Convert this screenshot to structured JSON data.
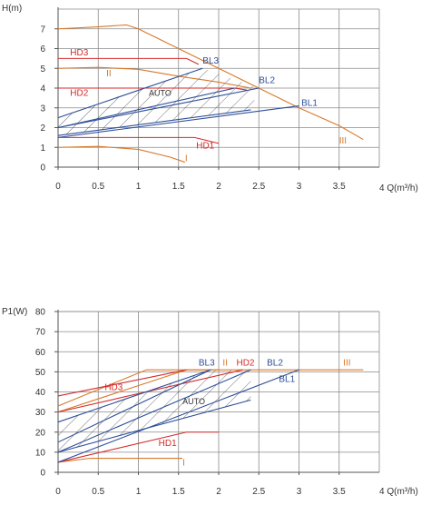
{
  "colors": {
    "orange": "#d9782a",
    "red": "#d42a2a",
    "blue": "#2e4f9a",
    "grid": "#8a8a8a",
    "axis": "#555555",
    "text": "#333333"
  },
  "chart_data": [
    {
      "type": "line",
      "ylabel": "H(m)",
      "xlabel": "4 Q(m³/h)",
      "xlim": [
        0,
        4
      ],
      "ylim": [
        0,
        8
      ],
      "x_ticks": [
        "0",
        "0.5",
        "1",
        "1.5",
        "2",
        "2.5",
        "3",
        "3.5"
      ],
      "y_ticks": [
        "0",
        "1",
        "2",
        "3",
        "4",
        "5",
        "6",
        "7"
      ],
      "grid": true,
      "series": [
        {
          "name": "III",
          "color": "#d9782a",
          "points": [
            [
              0,
              7
            ],
            [
              0.5,
              7.1
            ],
            [
              0.85,
              7.2
            ],
            [
              1.0,
              7.0
            ],
            [
              1.5,
              6.0
            ],
            [
              2.0,
              5.0
            ],
            [
              2.5,
              4.0
            ],
            [
              3.0,
              3.0
            ],
            [
              3.5,
              2.1
            ],
            [
              3.8,
              1.4
            ]
          ]
        },
        {
          "name": "II",
          "color": "#d9782a",
          "points": [
            [
              0,
              5
            ],
            [
              0.5,
              5.05
            ],
            [
              1.0,
              4.95
            ],
            [
              1.5,
              4.6
            ],
            [
              2.0,
              4.3
            ],
            [
              2.4,
              4.0
            ]
          ]
        },
        {
          "name": "I",
          "color": "#d9782a",
          "points": [
            [
              0,
              1
            ],
            [
              0.5,
              1.05
            ],
            [
              1.0,
              0.9
            ],
            [
              1.4,
              0.5
            ],
            [
              1.58,
              0.25
            ]
          ]
        },
        {
          "name": "HD3",
          "color": "#d42a2a",
          "points": [
            [
              0,
              5.5
            ],
            [
              1.6,
              5.5
            ],
            [
              1.75,
              5.2
            ]
          ]
        },
        {
          "name": "HD2",
          "color": "#d42a2a",
          "points": [
            [
              0,
              4
            ],
            [
              2.2,
              4
            ],
            [
              2.35,
              3.9
            ]
          ]
        },
        {
          "name": "HD1",
          "color": "#d42a2a",
          "points": [
            [
              0,
              1.5
            ],
            [
              1.7,
              1.5
            ],
            [
              2.0,
              1.2
            ]
          ]
        },
        {
          "name": "BL3",
          "color": "#2e4f9a",
          "points": [
            [
              0,
              2.5
            ],
            [
              1.8,
              5.0
            ]
          ]
        },
        {
          "name": "BL2",
          "color": "#2e4f9a",
          "points": [
            [
              0,
              2.0
            ],
            [
              2.5,
              4.0
            ]
          ]
        },
        {
          "name": "BL1",
          "color": "#2e4f9a",
          "points": [
            [
              0,
              1.5
            ],
            [
              3.0,
              3.1
            ]
          ]
        },
        {
          "name": "AUTO-upper",
          "color": "#2e4f9a",
          "points": [
            [
              0,
              2.0
            ],
            [
              2.2,
              4.0
            ]
          ]
        },
        {
          "name": "AUTO-lower",
          "color": "#2e4f9a",
          "points": [
            [
              0,
              1.6
            ],
            [
              2.4,
              2.9
            ]
          ]
        }
      ],
      "labels": [
        {
          "text": "HD3",
          "x": 0.15,
          "y": 5.65,
          "color": "#d42a2a"
        },
        {
          "text": "II",
          "x": 0.6,
          "y": 4.6,
          "color": "#d9782a"
        },
        {
          "text": "HD2",
          "x": 0.15,
          "y": 3.6,
          "color": "#d42a2a"
        },
        {
          "text": "AUTO",
          "x": 1.13,
          "y": 3.6,
          "color": "#333333"
        },
        {
          "text": "BL3",
          "x": 1.8,
          "y": 5.25,
          "color": "#2e4f9a"
        },
        {
          "text": "BL2",
          "x": 2.5,
          "y": 4.25,
          "color": "#2e4f9a"
        },
        {
          "text": "BL1",
          "x": 3.03,
          "y": 3.1,
          "color": "#2e4f9a"
        },
        {
          "text": "HD1",
          "x": 1.72,
          "y": 0.95,
          "color": "#d42a2a"
        },
        {
          "text": "I",
          "x": 1.58,
          "y": 0.3,
          "color": "#d9782a"
        },
        {
          "text": "III",
          "x": 3.5,
          "y": 1.2,
          "color": "#d9782a"
        }
      ],
      "hatch_region": [
        [
          0,
          1.6
        ],
        [
          2.4,
          2.9
        ],
        [
          2.5,
          4.0
        ],
        [
          1.8,
          5.0
        ],
        [
          0,
          2.5
        ]
      ]
    },
    {
      "type": "line",
      "ylabel": "P1(W)",
      "xlabel": "4 Q(m³/h)",
      "xlim": [
        0,
        4
      ],
      "ylim": [
        0,
        80
      ],
      "x_ticks": [
        "0",
        "0.5",
        "1",
        "1.5",
        "2",
        "2.5",
        "3",
        "3.5"
      ],
      "y_ticks": [
        "0",
        "10",
        "20",
        "30",
        "40",
        "50",
        "60",
        "70",
        "80"
      ],
      "grid": true,
      "series": [
        {
          "name": "III",
          "color": "#d9782a",
          "points": [
            [
              0,
              33
            ],
            [
              1.1,
              51
            ],
            [
              3.8,
              51
            ]
          ]
        },
        {
          "name": "II",
          "color": "#d9782a",
          "points": [
            [
              0,
              30
            ],
            [
              1.6,
              51
            ],
            [
              2.0,
              51
            ]
          ]
        },
        {
          "name": "I",
          "color": "#d9782a",
          "points": [
            [
              0,
              5
            ],
            [
              0.4,
              7
            ],
            [
              1.55,
              7
            ]
          ]
        },
        {
          "name": "HD3",
          "color": "#d42a2a",
          "points": [
            [
              0,
              38
            ],
            [
              1.6,
              51
            ]
          ]
        },
        {
          "name": "HD2",
          "color": "#d42a2a",
          "points": [
            [
              0,
              30
            ],
            [
              2.3,
              51
            ]
          ]
        },
        {
          "name": "HD1",
          "color": "#d42a2a",
          "points": [
            [
              0,
              5
            ],
            [
              1.6,
              20
            ],
            [
              2.0,
              20
            ]
          ]
        },
        {
          "name": "BL3",
          "color": "#2e4f9a",
          "points": [
            [
              0,
              15
            ],
            [
              1.9,
              51
            ]
          ]
        },
        {
          "name": "BL2",
          "color": "#2e4f9a",
          "points": [
            [
              0,
              10
            ],
            [
              2.4,
              51
            ]
          ]
        },
        {
          "name": "BL1",
          "color": "#2e4f9a",
          "points": [
            [
              0,
              5
            ],
            [
              3.0,
              51
            ]
          ]
        },
        {
          "name": "AUTO-upper",
          "color": "#2e4f9a",
          "points": [
            [
              0,
              25
            ],
            [
              1.9,
              51
            ]
          ]
        },
        {
          "name": "AUTO-lower",
          "color": "#2e4f9a",
          "points": [
            [
              0,
              10
            ],
            [
              2.4,
              36
            ]
          ]
        }
      ],
      "labels": [
        {
          "text": "BL3",
          "x": 1.75,
          "y": 53,
          "color": "#2e4f9a"
        },
        {
          "text": "II",
          "x": 2.05,
          "y": 53,
          "color": "#d9782a"
        },
        {
          "text": "HD2",
          "x": 2.22,
          "y": 53,
          "color": "#d42a2a"
        },
        {
          "text": "BL2",
          "x": 2.6,
          "y": 53,
          "color": "#2e4f9a"
        },
        {
          "text": "III",
          "x": 3.55,
          "y": 53,
          "color": "#d9782a"
        },
        {
          "text": "BL1",
          "x": 2.75,
          "y": 45,
          "color": "#2e4f9a"
        },
        {
          "text": "HD3",
          "x": 0.58,
          "y": 41,
          "color": "#d42a2a"
        },
        {
          "text": "AUTO",
          "x": 1.55,
          "y": 34,
          "color": "#333333"
        },
        {
          "text": "HD1",
          "x": 1.25,
          "y": 13,
          "color": "#d42a2a"
        },
        {
          "text": "I",
          "x": 1.55,
          "y": 3.5,
          "color": "#d9782a"
        }
      ],
      "hatch_region": [
        [
          0,
          10
        ],
        [
          2.4,
          36
        ],
        [
          2.4,
          51
        ],
        [
          1.9,
          51
        ],
        [
          0,
          25
        ]
      ]
    }
  ]
}
